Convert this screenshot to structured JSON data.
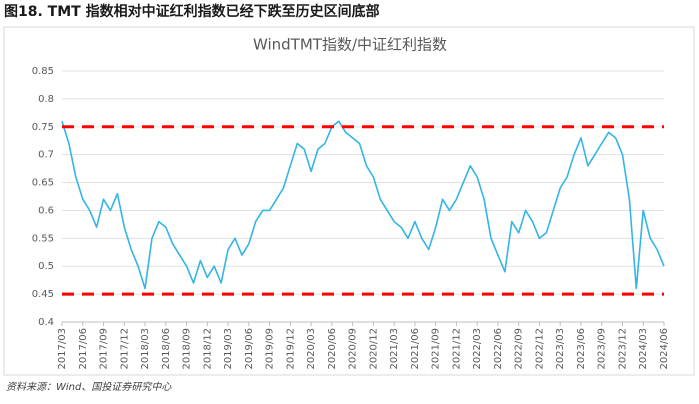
{
  "header": "图18. TMT 指数相对中证红利指数已经下跌至历史区间底部",
  "source": "资料来源：Wind、国投证券研究中心",
  "chart_data": {
    "type": "line",
    "title": "WindTMT指数/中证红利指数",
    "x": [
      "2017/03",
      "2017/04",
      "2017/05",
      "2017/06",
      "2017/07",
      "2017/08",
      "2017/09",
      "2017/10",
      "2017/11",
      "2017/12",
      "2018/01",
      "2018/02",
      "2018/03",
      "2018/04",
      "2018/05",
      "2018/06",
      "2018/07",
      "2018/08",
      "2018/09",
      "2018/10",
      "2018/11",
      "2018/12",
      "2019/01",
      "2019/02",
      "2019/03",
      "2019/04",
      "2019/05",
      "2019/06",
      "2019/07",
      "2019/08",
      "2019/09",
      "2019/10",
      "2019/11",
      "2019/12",
      "2020/01",
      "2020/02",
      "2020/03",
      "2020/04",
      "2020/05",
      "2020/06",
      "2020/07",
      "2020/08",
      "2020/09",
      "2020/10",
      "2020/11",
      "2020/12",
      "2021/01",
      "2021/02",
      "2021/03",
      "2021/04",
      "2021/05",
      "2021/06",
      "2021/07",
      "2021/08",
      "2021/09",
      "2021/10",
      "2021/11",
      "2021/12",
      "2022/01",
      "2022/02",
      "2022/03",
      "2022/04",
      "2022/05",
      "2022/06",
      "2022/07",
      "2022/08",
      "2022/09",
      "2022/10",
      "2022/11",
      "2022/12",
      "2023/01",
      "2023/02",
      "2023/03",
      "2023/04",
      "2023/05",
      "2023/06",
      "2023/07",
      "2023/08",
      "2023/09",
      "2023/10",
      "2023/11",
      "2023/12",
      "2024/01",
      "2024/02",
      "2024/03",
      "2024/04",
      "2024/05",
      "2024/06"
    ],
    "series": [
      {
        "color": "#33b5e5",
        "values": [
          0.76,
          0.72,
          0.66,
          0.62,
          0.6,
          0.57,
          0.62,
          0.6,
          0.63,
          0.57,
          0.53,
          0.5,
          0.46,
          0.55,
          0.58,
          0.57,
          0.54,
          0.52,
          0.5,
          0.47,
          0.51,
          0.48,
          0.5,
          0.47,
          0.53,
          0.55,
          0.52,
          0.54,
          0.58,
          0.6,
          0.6,
          0.62,
          0.64,
          0.68,
          0.72,
          0.71,
          0.67,
          0.71,
          0.72,
          0.75,
          0.76,
          0.74,
          0.73,
          0.72,
          0.68,
          0.66,
          0.62,
          0.6,
          0.58,
          0.57,
          0.55,
          0.58,
          0.55,
          0.53,
          0.57,
          0.62,
          0.6,
          0.62,
          0.65,
          0.68,
          0.66,
          0.62,
          0.55,
          0.52,
          0.49,
          0.58,
          0.56,
          0.6,
          0.58,
          0.55,
          0.56,
          0.6,
          0.64,
          0.66,
          0.7,
          0.73,
          0.68,
          0.7,
          0.72,
          0.74,
          0.73,
          0.7,
          0.62,
          0.46,
          0.6,
          0.55,
          0.53,
          0.5
        ]
      }
    ],
    "xticks": [
      "2017/03",
      "2017/06",
      "2017/09",
      "2017/12",
      "2018/03",
      "2018/06",
      "2018/09",
      "2018/12",
      "2019/03",
      "2019/06",
      "2019/09",
      "2019/12",
      "2020/03",
      "2020/06",
      "2020/09",
      "2020/12",
      "2021/03",
      "2021/06",
      "2021/09",
      "2021/12",
      "2022/03",
      "2022/06",
      "2022/09",
      "2022/12",
      "2023/03",
      "2023/06",
      "2023/09",
      "2023/12",
      "2024/03",
      "2024/06"
    ],
    "ylim": [
      0.4,
      0.85
    ],
    "yticks": [
      0.4,
      0.45,
      0.5,
      0.55,
      0.6,
      0.65,
      0.7,
      0.75,
      0.8,
      0.85
    ],
    "grid": true,
    "hlines": [
      0.75,
      0.45
    ],
    "hline_color": "#ff0000"
  }
}
